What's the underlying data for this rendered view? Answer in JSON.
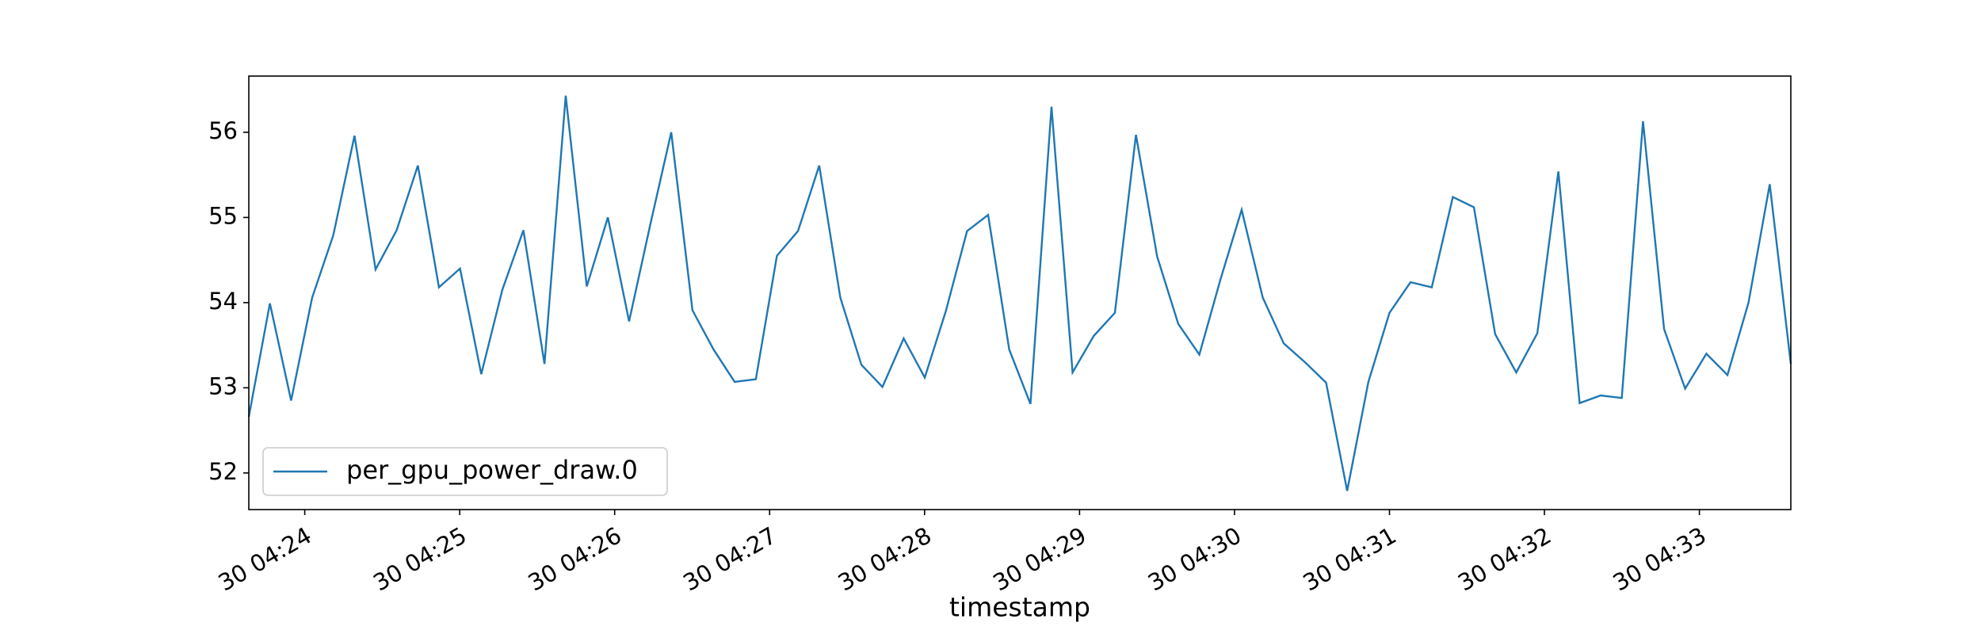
{
  "chart_data": {
    "type": "line",
    "x_label": "timestamp",
    "x": [
      23.639,
      23.775,
      23.912,
      24.048,
      24.184,
      24.321,
      24.457,
      24.593,
      24.73,
      24.866,
      25.002,
      25.139,
      25.275,
      25.411,
      25.547,
      25.684,
      25.82,
      25.956,
      26.093,
      26.229,
      26.365,
      26.502,
      26.638,
      26.774,
      26.911,
      27.047,
      27.183,
      27.32,
      27.456,
      27.592,
      27.728,
      27.865,
      28.001,
      28.137,
      28.274,
      28.41,
      28.546,
      28.683,
      28.819,
      28.955,
      29.092,
      29.228,
      29.364,
      29.501,
      29.637,
      29.773,
      29.909,
      30.046,
      30.182,
      30.318,
      30.455,
      30.591,
      30.727,
      30.864,
      31.0,
      31.136,
      31.273,
      31.409,
      31.545,
      31.682,
      31.818,
      31.954,
      32.09,
      32.227,
      32.363,
      32.499,
      32.636,
      32.772,
      32.908,
      33.045,
      33.181,
      33.317,
      33.454,
      33.59
    ],
    "series": [
      {
        "name": "per_gpu_power_draw.0",
        "color": "#1f77b4",
        "values": [
          52.66,
          53.99,
          52.85,
          54.06,
          54.79,
          55.96,
          54.39,
          54.85,
          55.61,
          54.18,
          54.4,
          53.16,
          54.15,
          54.85,
          53.28,
          56.43,
          54.19,
          55.0,
          53.78,
          54.91,
          56.0,
          53.91,
          53.45,
          53.07,
          53.1,
          54.55,
          54.84,
          55.61,
          54.06,
          53.27,
          53.01,
          53.58,
          53.12,
          53.9,
          54.84,
          55.03,
          53.45,
          52.81,
          56.3,
          53.18,
          53.61,
          53.88,
          55.97,
          54.54,
          53.75,
          53.39,
          54.27,
          55.09,
          54.06,
          53.52,
          53.3,
          53.06,
          51.79,
          53.07,
          53.88,
          54.24,
          54.18,
          55.24,
          55.12,
          53.63,
          53.18,
          53.64,
          55.54,
          52.82,
          52.91,
          52.88,
          56.13,
          53.69,
          52.99,
          53.4,
          53.15,
          54.0,
          55.39,
          53.28
        ]
      }
    ],
    "xlim": [
      23.639,
      33.59
    ],
    "xticks": [
      {
        "value": 24,
        "label": "30 04:24"
      },
      {
        "value": 25,
        "label": "30 04:25"
      },
      {
        "value": 26,
        "label": "30 04:26"
      },
      {
        "value": 27,
        "label": "30 04:27"
      },
      {
        "value": 28,
        "label": "30 04:28"
      },
      {
        "value": 29,
        "label": "30 04:29"
      },
      {
        "value": 30,
        "label": "30 04:30"
      },
      {
        "value": 31,
        "label": "30 04:31"
      },
      {
        "value": 32,
        "label": "30 04:32"
      },
      {
        "value": 33,
        "label": "30 04:33"
      }
    ],
    "ylim": [
      51.57,
      56.66
    ],
    "yticks": [
      52,
      53,
      54,
      55,
      56
    ],
    "legend": "lower left"
  }
}
